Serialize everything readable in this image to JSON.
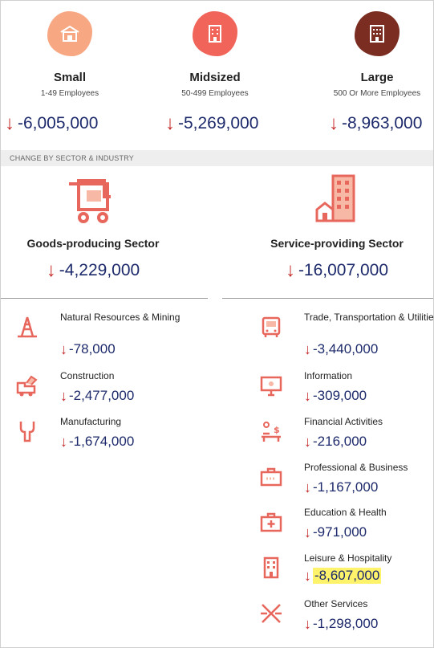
{
  "sizes": [
    {
      "title": "Small",
      "sub": "1-49 Employees",
      "change": "-6,005,000",
      "color": "#f7a883"
    },
    {
      "title": "Midsized",
      "sub": "50-499 Employees",
      "change": "-5,269,000",
      "color": "#f0645a"
    },
    {
      "title": "Large",
      "sub": "500 Or More Employees",
      "change": "-8,963,000",
      "color": "#7a2d20"
    }
  ],
  "band_label": "CHANGE BY SECTOR & INDUSTRY",
  "sectors": {
    "goods": {
      "title": "Goods-producing Sector",
      "change": "-4,229,000"
    },
    "service": {
      "title": "Service-providing Sector",
      "change": "-16,007,000"
    }
  },
  "goods_items": [
    {
      "label": "Natural Resources & Mining",
      "change": "-78,000",
      "icon": "oil-rig-icon"
    },
    {
      "label": "Construction",
      "change": "-2,477,000",
      "icon": "construction-truck-icon"
    },
    {
      "label": "Manufacturing",
      "change": "-1,674,000",
      "icon": "wrench-icon"
    }
  ],
  "service_items": [
    {
      "label": "Trade, Transportation & Utilities",
      "change": "-3,440,000",
      "icon": "bus-icon"
    },
    {
      "label": "Information",
      "change": "-309,000",
      "icon": "monitor-icon"
    },
    {
      "label": "Financial Activities",
      "change": "-216,000",
      "icon": "desk-dollar-icon"
    },
    {
      "label": "Professional & Business",
      "change": "-1,167,000",
      "icon": "briefcase-icon"
    },
    {
      "label": "Education & Health",
      "change": "-971,000",
      "icon": "medical-kit-icon"
    },
    {
      "label": "Leisure & Hospitality",
      "change": "-8,607,000",
      "icon": "hotel-icon"
    },
    {
      "label": "Other Services",
      "change": "-1,298,000",
      "icon": "scissors-icon"
    }
  ],
  "colors": {
    "accent": "#e8675d",
    "arrow": "#c62828",
    "value": "#1d2a6b",
    "highlight": "#fff36b"
  }
}
